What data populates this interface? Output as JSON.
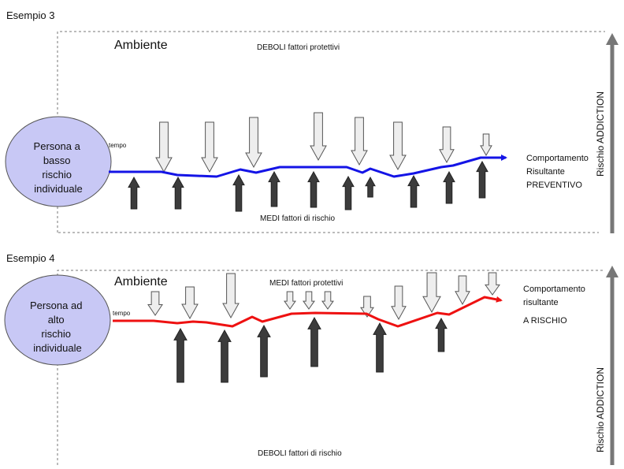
{
  "example3": {
    "label": "Esempio 3",
    "environment": "Ambiente",
    "protective_label": "DEBOLI  fattori protettivi",
    "risk_label": "MEDI  fattori di rischio",
    "person": [
      "Persona a",
      "basso",
      "rischio",
      "individuale"
    ],
    "time_label": "tempo",
    "outcome": [
      "Comportamento",
      "Risultante",
      "PREVENTIVO"
    ],
    "axis_label": "Rischio ADDICTION",
    "line_color": "#1414e6"
  },
  "example4": {
    "label": "Esempio 4",
    "environment": "Ambiente",
    "protective_label": "MEDI fattori protettivi",
    "risk_label": "DEBOLI fattori di rischio",
    "person": [
      "Persona ad",
      "alto",
      "rischio",
      "individuale"
    ],
    "time_label": "tempo",
    "outcome": [
      "Comportamento",
      "risultante",
      "A RISCHIO"
    ],
    "axis_label": "Rischio ADDICTION",
    "line_color": "#ee1111"
  },
  "colors": {
    "circle_fill": "#c8c8f5",
    "protective_arrow_fill": "#eeeeee",
    "risk_arrow_fill": "#3c3c3c",
    "axis_arrow": "#777777"
  }
}
